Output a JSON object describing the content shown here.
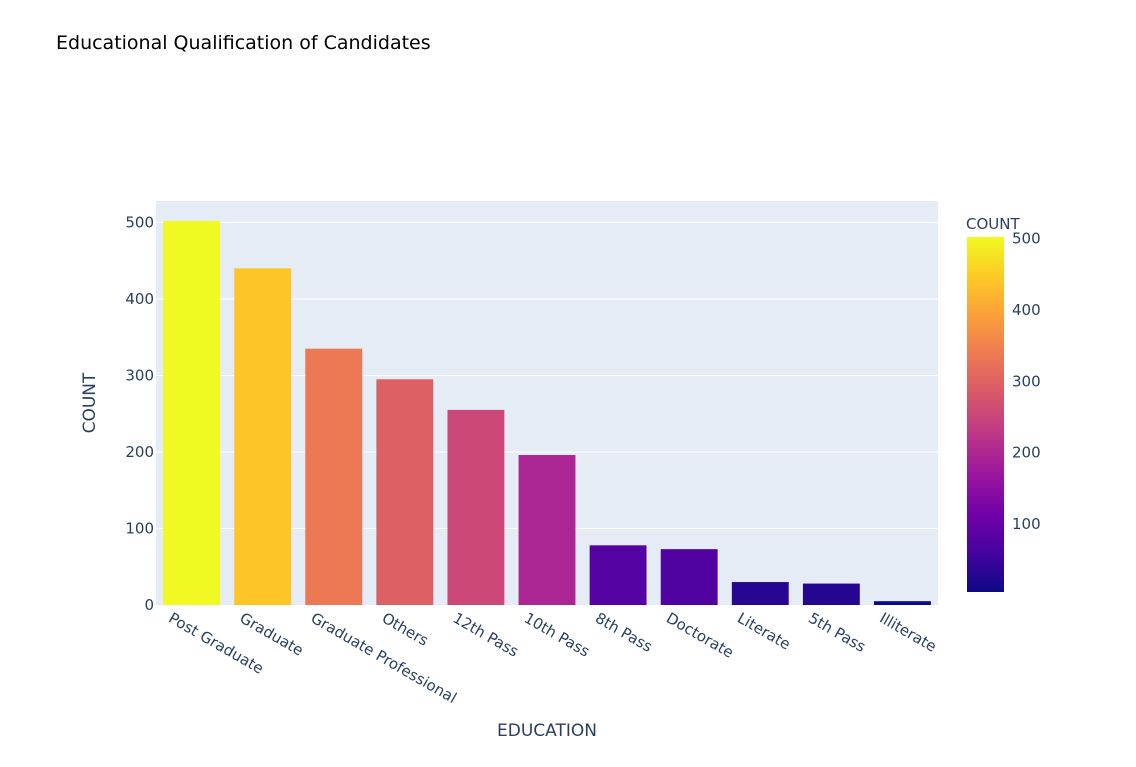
{
  "chart_data": {
    "type": "bar",
    "title": "Educational Qualification of Candidates",
    "xlabel": "EDUCATION",
    "ylabel": "COUNT",
    "categories": [
      "Post Graduate",
      "Graduate",
      "Graduate Professional",
      "Others",
      "12th Pass",
      "10th Pass",
      "8th Pass",
      "Doctorate",
      "Literate",
      "5th Pass",
      "Illiterate"
    ],
    "values": [
      502,
      440,
      335,
      295,
      255,
      196,
      78,
      73,
      30,
      28,
      5
    ],
    "ylim": [
      0,
      528
    ],
    "yticks": [
      0,
      100,
      200,
      300,
      400,
      500
    ],
    "grid": true,
    "colorbar": {
      "title": "COUNT",
      "range": [
        5,
        502
      ],
      "ticks": [
        100,
        200,
        300,
        400,
        500
      ],
      "colors": [
        "#0d0887",
        "#46039f",
        "#7201a8",
        "#9c179e",
        "#bd3786",
        "#d8576b",
        "#ed7953",
        "#fb9f3a",
        "#fdca26",
        "#f0f921"
      ]
    },
    "plot_background": "#e5ecf6"
  }
}
